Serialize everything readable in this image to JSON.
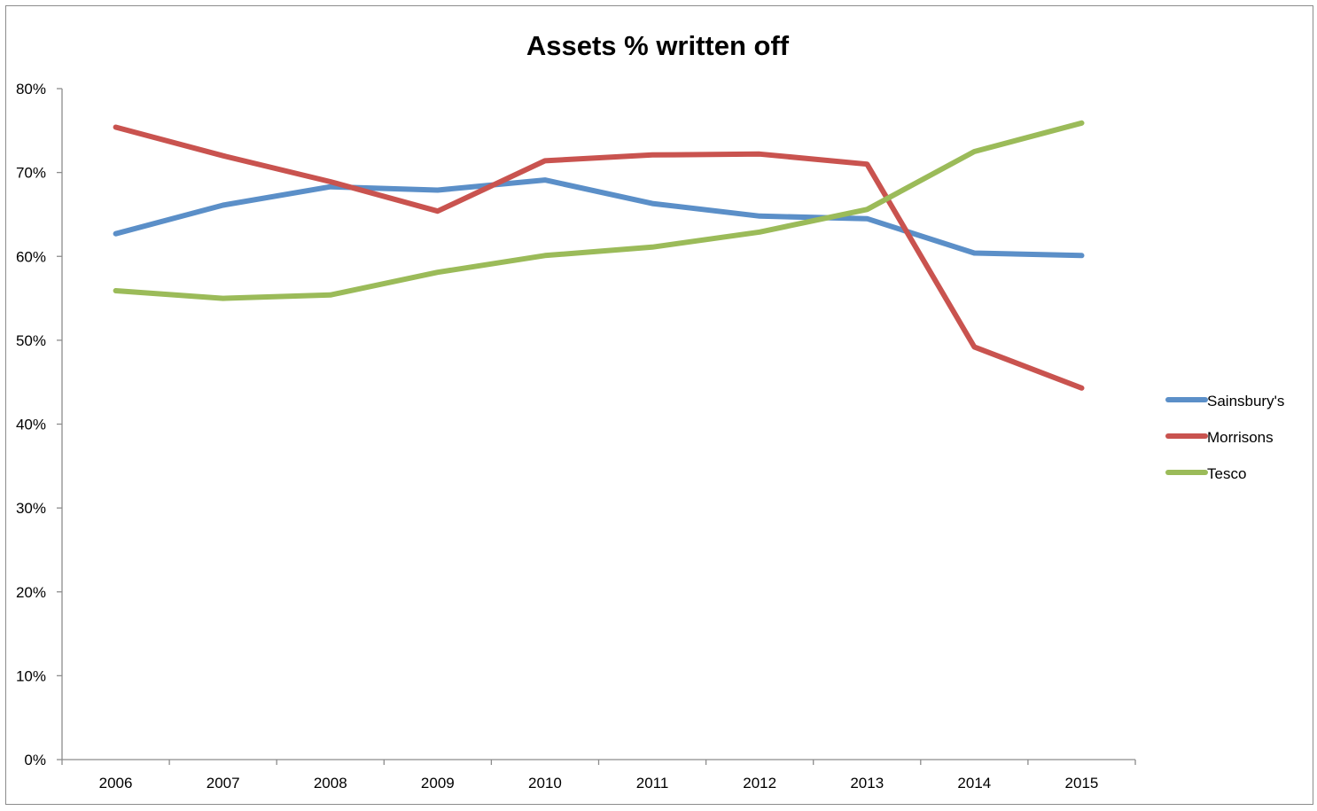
{
  "chart_data": {
    "type": "line",
    "title": "Assets % written off",
    "xlabel": "",
    "ylabel": "",
    "categories": [
      "2006",
      "2007",
      "2008",
      "2009",
      "2010",
      "2011",
      "2012",
      "2013",
      "2014",
      "2015"
    ],
    "y_ticks": [
      "0%",
      "10%",
      "20%",
      "30%",
      "40%",
      "50%",
      "60%",
      "70%",
      "80%"
    ],
    "ylim": [
      0,
      80
    ],
    "grid": false,
    "legend_position": "right",
    "series": [
      {
        "name": "Sainsbury's",
        "color": "#5b8fc8",
        "values": [
          62.7,
          66.1,
          68.3,
          67.9,
          69.1,
          66.3,
          64.8,
          64.5,
          60.4,
          60.1
        ]
      },
      {
        "name": "Morrisons",
        "color": "#c9534f",
        "values": [
          75.4,
          72.0,
          68.9,
          65.4,
          71.4,
          72.1,
          72.2,
          71.0,
          49.2,
          44.3
        ]
      },
      {
        "name": "Tesco",
        "color": "#9bbb59",
        "values": [
          55.9,
          55.0,
          55.4,
          58.1,
          60.1,
          61.1,
          62.9,
          65.6,
          72.5,
          75.9
        ]
      }
    ]
  }
}
